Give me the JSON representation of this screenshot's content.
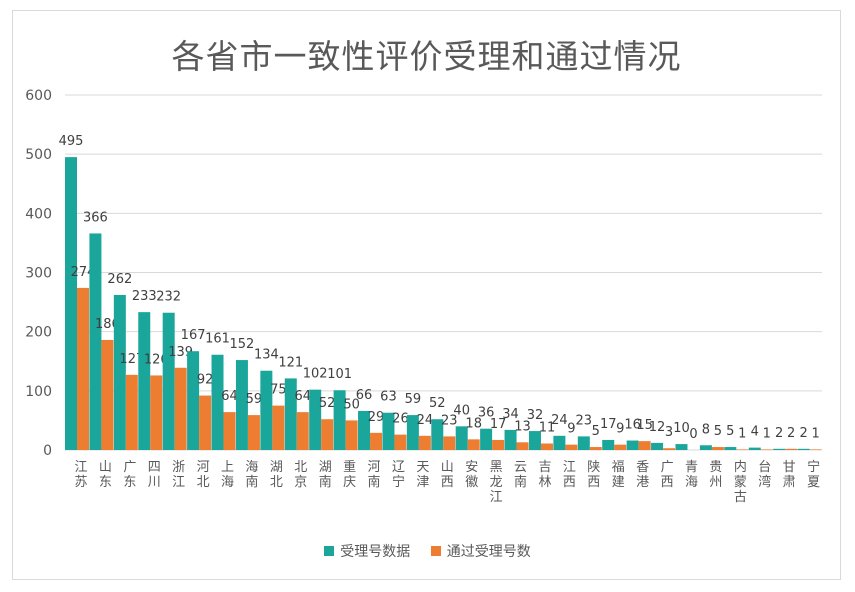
{
  "chart_data": {
    "type": "bar",
    "title": "各省市一致性评价受理和通过情况",
    "categories": [
      "江苏",
      "山东",
      "广东",
      "四川",
      "浙江",
      "河北",
      "上海",
      "海南",
      "湖北",
      "北京",
      "湖南",
      "重庆",
      "河南",
      "辽宁",
      "天津",
      "山西",
      "安徽",
      "黑龙江",
      "云南",
      "吉林",
      "江西",
      "陕西",
      "福建",
      "香港",
      "广西",
      "青海",
      "贵州",
      "内蒙古",
      "台湾",
      "甘肃",
      "宁夏"
    ],
    "series": [
      {
        "name": "受理号数据",
        "color": "#1aa69b",
        "values": [
          495,
          366,
          262,
          233,
          232,
          167,
          161,
          152,
          134,
          121,
          102,
          101,
          66,
          63,
          59,
          52,
          40,
          36,
          34,
          32,
          24,
          23,
          17,
          16,
          12,
          10,
          8,
          5,
          4,
          2,
          2
        ]
      },
      {
        "name": "通过受理号数",
        "color": "#ed7d31",
        "values": [
          274,
          186,
          127,
          126,
          139,
          92,
          64,
          59,
          75,
          64,
          52,
          50,
          29,
          26,
          24,
          23,
          18,
          17,
          13,
          11,
          9,
          5,
          9,
          15,
          3,
          0,
          5,
          1,
          1,
          2,
          1
        ]
      }
    ],
    "yticks": [
      "0",
      "100",
      "200",
      "300",
      "400",
      "500",
      "600"
    ],
    "ylim": [
      0,
      600
    ],
    "grid": true,
    "legend_position": "bottom"
  }
}
